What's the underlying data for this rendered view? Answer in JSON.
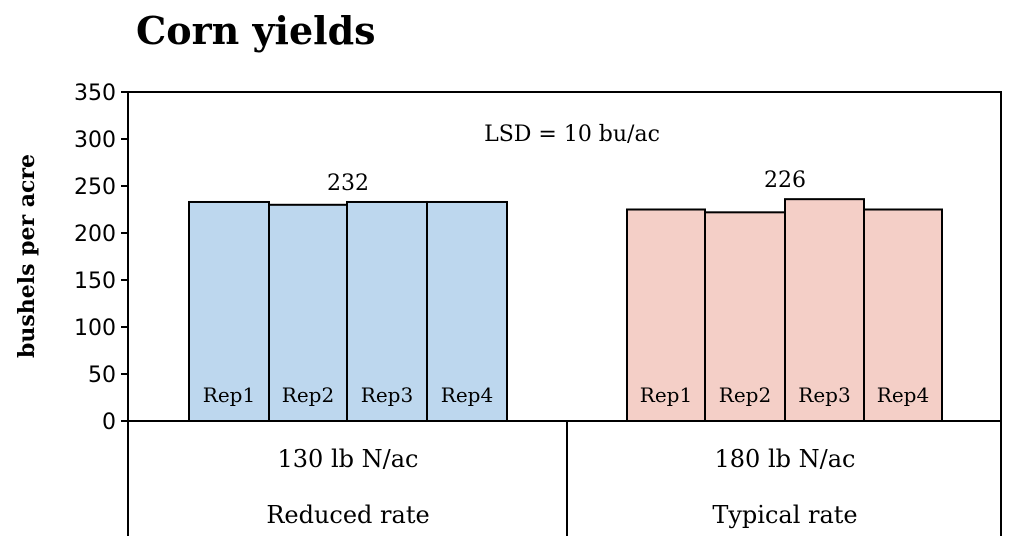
{
  "chart_data": {
    "type": "bar",
    "title": "Corn yields",
    "ylabel": "bushels per acre",
    "ylim": [
      0,
      350
    ],
    "yticks": [
      0,
      50,
      100,
      150,
      200,
      250,
      300,
      350
    ],
    "annotation": "LSD = 10 bu/ac",
    "groups": [
      {
        "rate": "130 lb N/ac",
        "label": "Reduced rate",
        "mean_label": "232",
        "color": "#bdd7ee",
        "bars": [
          {
            "name": "Rep1",
            "value": 233
          },
          {
            "name": "Rep2",
            "value": 230
          },
          {
            "name": "Rep3",
            "value": 233
          },
          {
            "name": "Rep4",
            "value": 233
          }
        ]
      },
      {
        "rate": "180 lb N/ac",
        "label": "Typical rate",
        "mean_label": "226",
        "color": "#f4cfc7",
        "bars": [
          {
            "name": "Rep1",
            "value": 225
          },
          {
            "name": "Rep2",
            "value": 222
          },
          {
            "name": "Rep3",
            "value": 236
          },
          {
            "name": "Rep4",
            "value": 225
          }
        ]
      }
    ],
    "grid": false,
    "legend": "none"
  }
}
